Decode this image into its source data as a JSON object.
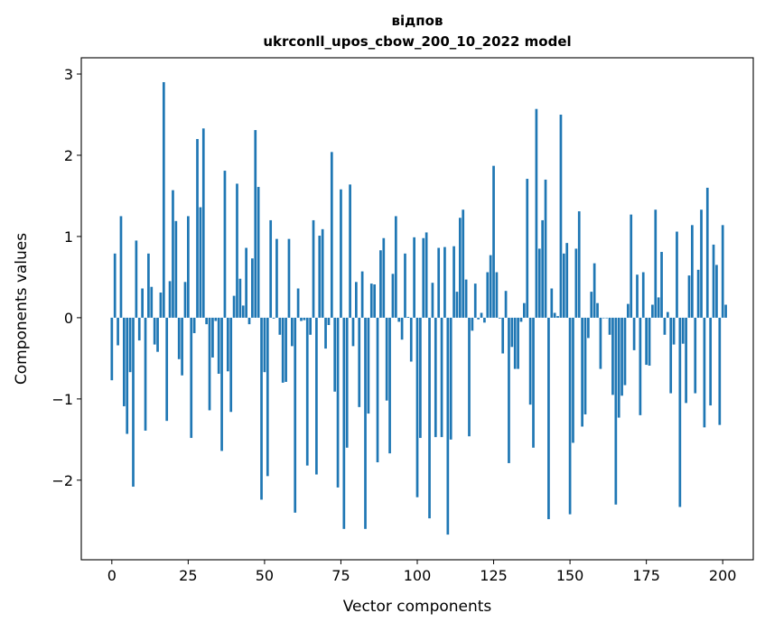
{
  "chart_data": {
    "type": "bar",
    "title": "відпов",
    "subtitle": "ukrconll_upos_cbow_200_10_2022 model",
    "xlabel": "Vector components",
    "ylabel": "Components values",
    "xlim": [
      -10,
      210
    ],
    "ylim": [
      -2.98,
      3.2
    ],
    "xticks": [
      0,
      25,
      50,
      75,
      100,
      125,
      150,
      175,
      200
    ],
    "yticks": [
      -2,
      -1,
      0,
      1,
      2,
      3
    ],
    "ytick_labels": [
      "−2",
      "−1",
      "0",
      "1",
      "2",
      "3"
    ],
    "grid": false,
    "bar_color": "#1f77b4",
    "values": [
      -0.77,
      0.79,
      -0.34,
      1.25,
      -1.09,
      -1.43,
      -0.67,
      -2.08,
      0.95,
      -0.28,
      0.36,
      -1.39,
      0.79,
      0.38,
      -0.33,
      -0.42,
      0.31,
      2.9,
      -1.27,
      0.45,
      1.57,
      1.19,
      -0.51,
      -0.71,
      0.44,
      1.25,
      -1.48,
      -0.19,
      2.2,
      1.36,
      2.33,
      -0.08,
      -1.14,
      -0.49,
      -0.04,
      -0.69,
      -1.64,
      1.81,
      -0.66,
      -1.16,
      0.27,
      1.65,
      0.48,
      0.15,
      0.86,
      -0.08,
      0.73,
      2.31,
      1.61,
      -2.24,
      -0.67,
      -1.95,
      1.2,
      -0.01,
      0.97,
      -0.21,
      -0.8,
      -0.79,
      0.97,
      -0.35,
      -2.4,
      0.36,
      -0.04,
      -0.03,
      -1.82,
      -0.21,
      1.2,
      -1.93,
      1.01,
      1.09,
      -0.38,
      -0.09,
      2.04,
      -0.91,
      -2.09,
      1.58,
      -2.6,
      -1.6,
      1.64,
      -0.35,
      0.44,
      -1.1,
      0.57,
      -2.6,
      -1.18,
      0.42,
      0.41,
      -1.78,
      0.83,
      0.98,
      -1.02,
      -1.67,
      0.54,
      1.25,
      -0.05,
      -0.27,
      0.79,
      0.01,
      -0.54,
      0.99,
      -2.21,
      -1.48,
      0.98,
      1.05,
      -2.47,
      0.43,
      -1.47,
      0.86,
      -1.47,
      0.87,
      -2.67,
      -1.5,
      0.88,
      0.32,
      1.23,
      1.33,
      0.47,
      -1.46,
      -0.16,
      0.42,
      -0.02,
      0.06,
      -0.06,
      0.56,
      0.77,
      1.87,
      0.56,
      -0.01,
      -0.44,
      0.33,
      -1.79,
      -0.36,
      -0.63,
      -0.63,
      -0.05,
      0.18,
      1.71,
      -1.07,
      -1.6,
      2.57,
      0.85,
      1.2,
      1.7,
      -2.48,
      0.36,
      0.06,
      0.02,
      2.5,
      0.79,
      0.92,
      -2.42,
      -1.54,
      0.85,
      1.31,
      -1.34,
      -1.19,
      -0.25,
      0.32,
      0.67,
      0.18,
      -0.63,
      0.0,
      0.0,
      -0.21,
      -0.95,
      -2.3,
      -1.23,
      -0.96,
      -0.83,
      0.17,
      1.27,
      -0.4,
      0.53,
      -1.2,
      0.56,
      -0.58,
      -0.59,
      0.16,
      1.33,
      0.25,
      0.81,
      -0.21,
      0.07,
      -0.93,
      -0.33,
      1.06,
      -2.33,
      -0.32,
      -1.05,
      0.52,
      1.14,
      -0.93,
      0.59,
      1.33,
      -1.35,
      1.6,
      -1.08,
      0.9,
      0.65,
      -1.32,
      1.14,
      0.16
    ]
  }
}
